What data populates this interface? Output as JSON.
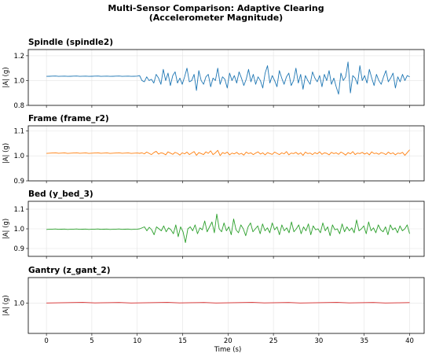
{
  "title_line1": "Multi-Sensor Comparison: Adaptive Clearing",
  "title_line2": "(Accelerometer Magnitude)",
  "xlabel": "Time (s)",
  "chart_data": [
    {
      "type": "line",
      "title": "Spindle (spindle2)",
      "ylabel": "|A| (g)",
      "color": "#1f77b4",
      "ylim": [
        0.8,
        1.25
      ],
      "yticks": [
        "0.8",
        "1.0",
        "1.2"
      ],
      "ytick_values": [
        0.8,
        1.0,
        1.2
      ],
      "xlim": [
        -2,
        41.6
      ],
      "xticks": [
        0,
        5,
        10,
        15,
        20,
        25,
        30,
        35,
        40
      ],
      "x_start": 0,
      "x_end": 40,
      "steady_end": 10,
      "steady_value": 1.035,
      "active_values": [
        1.04,
        1.0,
        0.99,
        1.03,
        1.0,
        1.01,
        0.98,
        1.05,
        1.02,
        0.97,
        1.09,
        1.0,
        1.06,
        0.96,
        1.04,
        1.07,
        0.98,
        1.02,
        0.97,
        1.03,
        1.1,
        0.99,
        1.0,
        1.05,
        0.92,
        1.08,
        1.0,
        0.97,
        1.03,
        1.05,
        0.95,
        1.02,
        1.0,
        1.1,
        0.97,
        1.03,
        1.01,
        0.94,
        1.06,
        1.0,
        1.04,
        0.98,
        1.07,
        1.02,
        0.96,
        1.01,
        1.09,
        0.99,
        1.05,
        0.97,
        1.03,
        1.0,
        0.94,
        1.06,
        1.12,
        0.98,
        1.04,
        1.0,
        0.95,
        1.08,
        1.02,
        0.97,
        1.03,
        1.06,
        0.96,
        1.0,
        1.1,
        0.98,
        1.05,
        0.93,
        1.04,
        1.0,
        0.97,
        1.07,
        1.02,
        0.99,
        1.04,
        0.95,
        1.05,
        1.0,
        1.08,
        0.97,
        1.02,
        0.95,
        0.89,
        1.06,
        1.0,
        1.03,
        1.15,
        0.9,
        1.04,
        1.02,
        0.97,
        1.12,
        1.0,
        1.04,
        0.98,
        1.09,
        1.02,
        0.96,
        1.05,
        1.0,
        0.97,
        1.03,
        1.08,
        0.99,
        1.02,
        1.06,
        0.94,
        1.03,
        0.99,
        1.05,
        1.0,
        1.04,
        1.03
      ]
    },
    {
      "type": "line",
      "title": "Frame (frame_r2)",
      "ylabel": "|A| (g)",
      "color": "#ff7f0e",
      "ylim": [
        0.9,
        1.12
      ],
      "yticks": [
        "0.9",
        "1.0",
        "1.1"
      ],
      "ytick_values": [
        0.9,
        1.0,
        1.1
      ],
      "xlim": [
        -2,
        41.6
      ],
      "xticks": [
        0,
        5,
        10,
        15,
        20,
        25,
        30,
        35,
        40
      ],
      "x_start": 0,
      "x_end": 40,
      "steady_end": 10,
      "steady_value": 1.011,
      "active_values": [
        1.01,
        1.012,
        1.008,
        1.015,
        1.01,
        1.005,
        1.013,
        1.018,
        1.007,
        1.012,
        1.01,
        1.004,
        1.016,
        1.011,
        1.006,
        1.014,
        1.01,
        1.003,
        1.012,
        1.008,
        1.015,
        1.005,
        1.011,
        1.017,
        1.002,
        1.013,
        1.009,
        1.005,
        1.016,
        1.01,
        1.02,
        1.005,
        1.012,
        1.022,
        1.001,
        1.013,
        1.009,
        1.015,
        1.004,
        1.011,
        1.008,
        1.014,
        1.006,
        1.01,
        1.003,
        1.015,
        1.009,
        1.012,
        1.005,
        1.011,
        1.016,
        1.007,
        1.012,
        1.004,
        1.013,
        1.009,
        1.006,
        1.015,
        1.01,
        1.005,
        1.012,
        1.008,
        1.017,
        1.004,
        1.011,
        1.009,
        1.014,
        1.006,
        1.012,
        1.002,
        1.015,
        1.009,
        1.011,
        1.005,
        1.013,
        1.008,
        1.016,
        1.006,
        1.012,
        1.01,
        1.004,
        1.014,
        1.009,
        1.012,
        1.006,
        1.015,
        1.01,
        1.003,
        1.013,
        1.008,
        1.017,
        1.005,
        1.011,
        1.009,
        1.014,
        1.007,
        1.012,
        1.004,
        1.016,
        1.009,
        1.011,
        1.006,
        1.013,
        1.01,
        1.005,
        1.015,
        1.008,
        1.012,
        1.004,
        1.011,
        1.009,
        1.014,
        1.002,
        1.013,
        1.024
      ]
    },
    {
      "type": "line",
      "title": "Bed (y_bed_3)",
      "ylabel": "|A| (g)",
      "color": "#2ca02c",
      "ylim": [
        0.86,
        1.14
      ],
      "yticks": [
        "0.9",
        "1.0",
        "1.1"
      ],
      "ytick_values": [
        0.9,
        1.0,
        1.1
      ],
      "xlim": [
        -2,
        41.6
      ],
      "xticks": [
        0,
        5,
        10,
        15,
        20,
        25,
        30,
        35,
        40
      ],
      "x_start": 0,
      "x_end": 40,
      "steady_end": 10,
      "steady_value": 0.998,
      "active_values": [
        1.0,
        1.005,
        1.01,
        0.99,
        1.008,
        0.995,
        0.97,
        1.01,
        1.0,
        0.99,
        1.015,
        0.985,
        1.005,
        0.995,
        0.975,
        1.02,
        0.96,
        1.01,
        0.985,
        0.93,
        1.0,
        1.01,
        0.99,
        1.02,
        0.975,
        1.005,
        0.995,
        1.04,
        0.985,
        1.01,
        1.035,
        0.98,
        1.075,
        1.0,
        0.985,
        1.03,
        0.99,
        1.01,
        0.97,
        1.05,
        0.995,
        0.98,
        1.02,
        1.0,
        0.965,
        1.01,
        1.03,
        0.985,
        1.0,
        1.015,
        0.975,
        1.025,
        0.99,
        1.005,
        0.98,
        1.03,
        0.995,
        1.01,
        0.97,
        1.02,
        0.99,
        1.005,
        0.98,
        1.035,
        0.985,
        1.0,
        1.02,
        0.975,
        1.01,
        0.99,
        1.025,
        0.97,
        1.015,
        0.995,
        1.0,
        0.98,
        1.03,
        0.99,
        1.01,
        0.965,
        1.02,
        0.995,
        1.0,
        0.975,
        1.025,
        0.985,
        1.01,
        0.99,
        1.005,
        0.98,
        1.045,
        0.99,
        1.0,
        1.015,
        0.975,
        1.035,
        0.99,
        1.005,
        0.98,
        1.02,
        0.995,
        0.985,
        1.01,
        0.97,
        1.02,
        0.995,
        1.005,
        0.98,
        1.015,
        0.99,
        1.0,
        1.02,
        0.975
      ]
    },
    {
      "type": "line",
      "title": "Gantry (z_gant_2)",
      "ylabel": "|A| (g)",
      "color": "#d62728",
      "ylim": [
        0.88,
        1.1
      ],
      "yticks": [
        "1.0"
      ],
      "ytick_values": [
        1.0
      ],
      "xlim": [
        -2,
        41.6
      ],
      "xticks": [
        0,
        5,
        10,
        15,
        20,
        25,
        30,
        35,
        40
      ],
      "x_start": 0,
      "x_end": 40,
      "steady_end": 40,
      "steady_value": 1.001,
      "active_values": []
    }
  ]
}
